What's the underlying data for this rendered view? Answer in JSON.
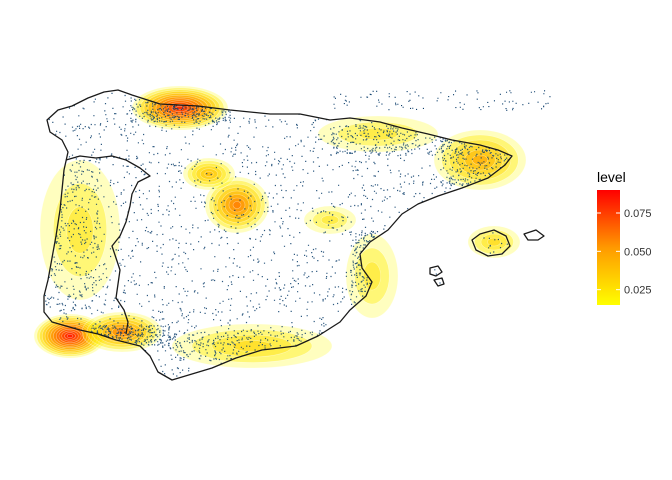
{
  "chart_data": {
    "type": "heatmap",
    "subtype": "2d-density-over-map",
    "region": "Iberian Peninsula and Balearic Islands",
    "point_color": "#0b3d6b",
    "outline_color": "#1a1a1a",
    "legend": {
      "title": "level",
      "position": "right",
      "range": [
        0.015,
        0.09
      ],
      "ticks": [
        {
          "value": 0.075,
          "label": "0.075"
        },
        {
          "value": 0.05,
          "label": "0.050"
        },
        {
          "value": 0.025,
          "label": "0.025"
        }
      ],
      "colors": [
        "#ffff00",
        "#ff0000"
      ]
    },
    "hotspots": [
      {
        "name": "northwest-cantabria",
        "peak_level": 0.085
      },
      {
        "name": "southwest-coast-west",
        "peak_level": 0.09
      },
      {
        "name": "southwest-coast-east",
        "peak_level": 0.06
      },
      {
        "name": "central-madrid",
        "peak_level": 0.06
      },
      {
        "name": "north-central",
        "peak_level": 0.04
      },
      {
        "name": "northeast-catalonia",
        "peak_level": 0.045
      },
      {
        "name": "ebro-north",
        "peak_level": 0.025
      },
      {
        "name": "central-east",
        "peak_level": 0.025
      },
      {
        "name": "south-coast",
        "peak_level": 0.03
      },
      {
        "name": "east-coast-valencia",
        "peak_level": 0.025
      },
      {
        "name": "west-portugal",
        "peak_level": 0.025
      },
      {
        "name": "balearic-mallorca",
        "peak_level": 0.03
      }
    ]
  }
}
